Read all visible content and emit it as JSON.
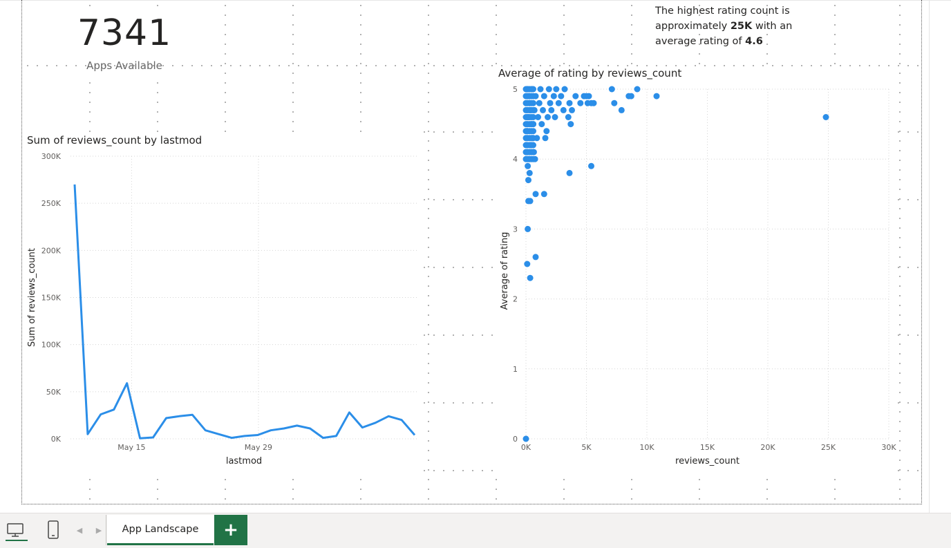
{
  "kpi_card": {
    "value": "7341",
    "label": "Apps Available"
  },
  "textbox": {
    "line1": "The highest rating count is",
    "line2_pre": "approximately ",
    "line2_bold": "25K",
    "line2_post": " with an",
    "line3_pre": "average rating of ",
    "line3_bold": "4.6"
  },
  "chart_data": [
    {
      "type": "line",
      "title": "Sum of reviews_count by lastmod",
      "xlabel": "lastmod",
      "ylabel": "Sum of reviews_count",
      "ylim": [
        0,
        300000
      ],
      "y_ticks": [
        "0K",
        "50K",
        "100K",
        "150K",
        "200K",
        "250K",
        "300K"
      ],
      "x_ticks": [
        "May 15",
        "May 29"
      ],
      "grid": true,
      "color": "#2b8ee8",
      "series": [
        {
          "values": [
            270000,
            5000,
            26000,
            31000,
            59000,
            500,
            1500,
            22000,
            24000,
            25500,
            9000,
            5000,
            1000,
            3000,
            4000,
            9000,
            11000,
            14000,
            11000,
            1000,
            3000,
            28000,
            12000,
            17000,
            24000,
            20000,
            4000
          ]
        }
      ]
    },
    {
      "type": "scatter",
      "title": "Average of rating by reviews_count",
      "xlabel": "reviews_count",
      "ylabel": "Average of rating",
      "xlim": [
        0,
        30000
      ],
      "ylim": [
        0,
        5
      ],
      "x_ticks": [
        "0K",
        "5K",
        "10K",
        "15K",
        "20K",
        "25K",
        "30K"
      ],
      "y_ticks": [
        "0",
        "1",
        "2",
        "3",
        "4",
        "5"
      ],
      "grid": true,
      "color": "#2b8ee8",
      "points": [
        [
          24800,
          4.6
        ],
        [
          10800,
          4.9
        ],
        [
          9200,
          5.0
        ],
        [
          8700,
          4.9
        ],
        [
          8500,
          4.9
        ],
        [
          7900,
          4.7
        ],
        [
          7300,
          4.8
        ],
        [
          7100,
          5.0
        ],
        [
          5600,
          4.8
        ],
        [
          5400,
          4.8
        ],
        [
          5200,
          4.9
        ],
        [
          5100,
          4.8
        ],
        [
          5000,
          4.9
        ],
        [
          4800,
          4.9
        ],
        [
          4500,
          4.8
        ],
        [
          4100,
          4.9
        ],
        [
          3800,
          4.7
        ],
        [
          3700,
          4.5
        ],
        [
          3600,
          4.8
        ],
        [
          3500,
          4.6
        ],
        [
          3200,
          5.0
        ],
        [
          3100,
          4.7
        ],
        [
          2900,
          4.9
        ],
        [
          2700,
          4.8
        ],
        [
          2500,
          5.0
        ],
        [
          2400,
          4.6
        ],
        [
          2300,
          4.9
        ],
        [
          2100,
          4.7
        ],
        [
          2000,
          4.8
        ],
        [
          1900,
          5.0
        ],
        [
          1800,
          4.6
        ],
        [
          1700,
          4.4
        ],
        [
          1600,
          4.3
        ],
        [
          1500,
          4.9
        ],
        [
          1400,
          4.7
        ],
        [
          1300,
          4.5
        ],
        [
          1200,
          5.0
        ],
        [
          1100,
          4.8
        ],
        [
          1000,
          4.6
        ],
        [
          900,
          4.3
        ],
        [
          800,
          4.9
        ],
        [
          700,
          4.7
        ],
        [
          600,
          4.5
        ],
        [
          500,
          5.0
        ],
        [
          400,
          4.2
        ],
        [
          300,
          4.8
        ],
        [
          200,
          4.6
        ],
        [
          100,
          4.4
        ],
        [
          150,
          5.0
        ],
        [
          250,
          4.9
        ],
        [
          350,
          4.7
        ],
        [
          450,
          4.5
        ],
        [
          550,
          4.3
        ],
        [
          650,
          4.1
        ],
        [
          750,
          4.0
        ],
        [
          250,
          4.0
        ],
        [
          150,
          3.9
        ],
        [
          300,
          3.8
        ],
        [
          200,
          3.7
        ],
        [
          800,
          3.5
        ],
        [
          1500,
          3.5
        ],
        [
          200,
          3.4
        ],
        [
          350,
          3.4
        ],
        [
          3600,
          3.8
        ],
        [
          5400,
          3.9
        ],
        [
          150,
          3.0
        ],
        [
          800,
          2.6
        ],
        [
          100,
          2.5
        ],
        [
          350,
          2.3
        ],
        [
          0,
          0.0
        ]
      ]
    }
  ],
  "bottom_bar": {
    "desktop_icon": "desktop-icon",
    "phone_icon": "phone-icon",
    "tab_label": "App Landscape",
    "add_label": "+"
  }
}
